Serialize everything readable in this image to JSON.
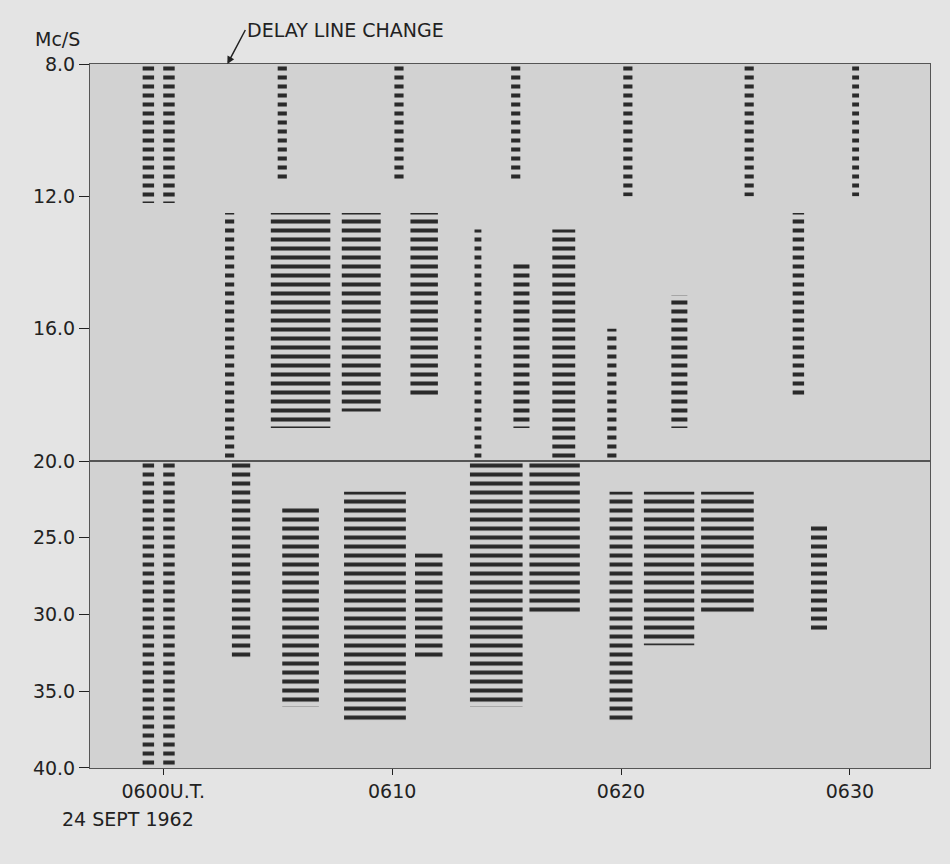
{
  "chart_data": {
    "type": "dynamic_spectrum",
    "y_label": "Mc/S",
    "date": "24 SEPT 1962",
    "color": "#2a2a2a",
    "xlim": [
      596.8,
      633.5
    ],
    "xticks": [
      {
        "value": 600,
        "label": "0600U.T."
      },
      {
        "value": 610,
        "label": "0610"
      },
      {
        "value": 620,
        "label": "0620"
      },
      {
        "value": 630,
        "label": "0630"
      }
    ],
    "annotations": [
      {
        "text": "DELAY LINE CHANGE",
        "x": 602.8
      }
    ],
    "panels": [
      {
        "ylim": [
          8,
          20
        ],
        "yticks": [
          {
            "value": 8,
            "label": "8.0"
          },
          {
            "value": 12,
            "label": "12.0"
          },
          {
            "value": 16,
            "label": "16.0"
          },
          {
            "value": 20,
            "label": "20.0"
          }
        ],
        "bursts": [
          {
            "t": [
              599.1,
              599.6
            ],
            "f": [
              8,
              12.2
            ]
          },
          {
            "t": [
              600.0,
              600.5
            ],
            "f": [
              8,
              12.2
            ]
          },
          {
            "t": [
              602.7,
              603.1
            ],
            "f": [
              12.5,
              20
            ]
          },
          {
            "t": [
              605.0,
              605.4
            ],
            "f": [
              8,
              11.5
            ]
          },
          {
            "t": [
              604.7,
              607.3
            ],
            "f": [
              12.5,
              19
            ]
          },
          {
            "t": [
              607.8,
              609.5
            ],
            "f": [
              12.5,
              18.5
            ]
          },
          {
            "t": [
              610.1,
              610.5
            ],
            "f": [
              8,
              11.5
            ]
          },
          {
            "t": [
              610.8,
              612.0
            ],
            "f": [
              12.5,
              18
            ]
          },
          {
            "t": [
              613.6,
              613.9
            ],
            "f": [
              13,
              20
            ]
          },
          {
            "t": [
              615.2,
              615.6
            ],
            "f": [
              8,
              11.5
            ]
          },
          {
            "t": [
              615.3,
              616.0
            ],
            "f": [
              14,
              19
            ]
          },
          {
            "t": [
              617.0,
              618.0
            ],
            "f": [
              13,
              20
            ]
          },
          {
            "t": [
              619.4,
              619.8
            ],
            "f": [
              16,
              20
            ]
          },
          {
            "t": [
              620.1,
              620.5
            ],
            "f": [
              8,
              12
            ]
          },
          {
            "t": [
              622.2,
              622.9
            ],
            "f": [
              15,
              19
            ]
          },
          {
            "t": [
              625.4,
              625.8
            ],
            "f": [
              8,
              12
            ]
          },
          {
            "t": [
              627.5,
              628.0
            ],
            "f": [
              12.5,
              18
            ]
          },
          {
            "t": [
              630.1,
              630.4
            ],
            "f": [
              8,
              12
            ]
          }
        ]
      },
      {
        "ylim": [
          20,
          40
        ],
        "yticks": [
          {
            "value": 25,
            "label": "25.0"
          },
          {
            "value": 30,
            "label": "30.0"
          },
          {
            "value": 35,
            "label": "35.0"
          },
          {
            "value": 40,
            "label": "40.0"
          }
        ],
        "bursts": [
          {
            "t": [
              599.1,
              599.6
            ],
            "f": [
              20,
              40
            ]
          },
          {
            "t": [
              600.0,
              600.5
            ],
            "f": [
              20,
              40
            ]
          },
          {
            "t": [
              603.0,
              603.8
            ],
            "f": [
              20,
              33
            ]
          },
          {
            "t": [
              605.2,
              606.8
            ],
            "f": [
              23,
              36
            ]
          },
          {
            "t": [
              607.9,
              610.6
            ],
            "f": [
              22,
              37
            ]
          },
          {
            "t": [
              611.0,
              612.2
            ],
            "f": [
              26,
              33
            ]
          },
          {
            "t": [
              613.4,
              615.7
            ],
            "f": [
              20,
              36
            ]
          },
          {
            "t": [
              616.0,
              618.2
            ],
            "f": [
              20,
              30
            ]
          },
          {
            "t": [
              619.5,
              620.5
            ],
            "f": [
              22,
              37
            ]
          },
          {
            "t": [
              621.0,
              623.2
            ],
            "f": [
              22,
              32
            ]
          },
          {
            "t": [
              623.5,
              625.8
            ],
            "f": [
              22,
              30
            ]
          },
          {
            "t": [
              628.3,
              629.0
            ],
            "f": [
              24,
              31
            ]
          }
        ]
      }
    ]
  }
}
